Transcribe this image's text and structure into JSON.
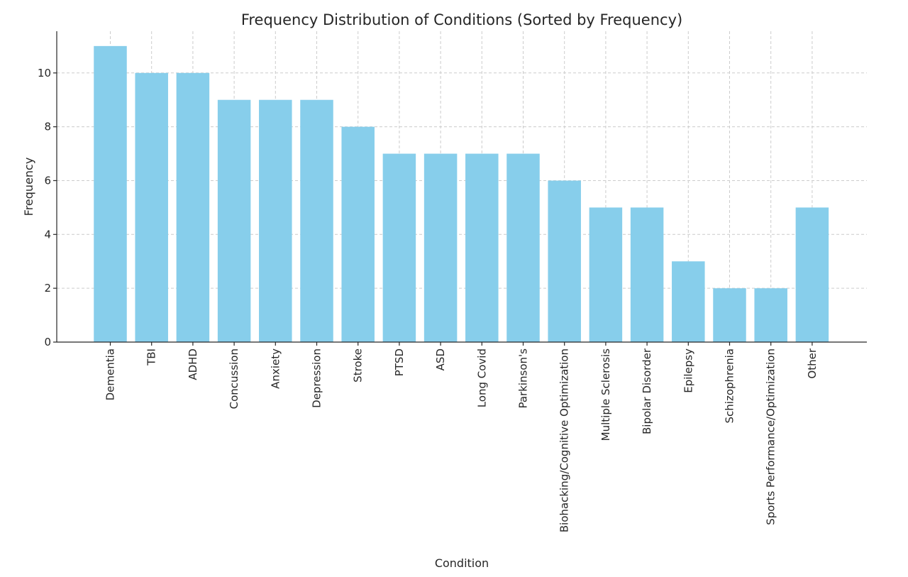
{
  "chart_data": {
    "type": "bar",
    "title": "Frequency Distribution of Conditions (Sorted by Frequency)",
    "xlabel": "Condition",
    "ylabel": "Frequency",
    "categories": [
      "Dementia",
      "TBI",
      "ADHD",
      "Concussion",
      "Anxiety",
      "Depression",
      "Stroke",
      "PTSD",
      "ASD",
      "Long Covid",
      "Parkinson's",
      "Biohacking/Cognitive Optimization",
      "Multiple Sclerosis",
      "Bipolar Disorder",
      "Epilepsy",
      "Schizophrenia",
      "Sports Performance/Optimization",
      "Other"
    ],
    "values": [
      11,
      10,
      10,
      9,
      9,
      9,
      8,
      7,
      7,
      7,
      7,
      6,
      5,
      5,
      3,
      2,
      2,
      5
    ],
    "yticks": [
      0,
      2,
      4,
      6,
      8,
      10
    ],
    "ylim": [
      0,
      11.55
    ],
    "grid": true,
    "bar_color": "#87ceeb",
    "axis_color": "#262626",
    "grid_color": "#cccccc"
  }
}
